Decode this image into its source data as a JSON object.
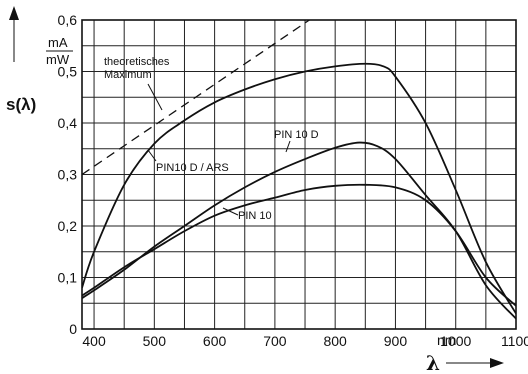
{
  "chart_data": {
    "type": "line",
    "ylabel": "s(λ)",
    "yunit_num": "mA",
    "yunit_den": "mW",
    "xlabel": "λ",
    "xunit": "nm",
    "xlim": [
      380,
      1100
    ],
    "ylim": [
      0,
      0.6
    ],
    "grid": true,
    "xticks": [
      400,
      500,
      600,
      700,
      800,
      900,
      1000,
      1100
    ],
    "xtick_labels": [
      "400",
      "500",
      "600",
      "700",
      "800",
      "900",
      "1000",
      "1100"
    ],
    "yticks": [
      0,
      0.1,
      0.2,
      0.3,
      0.4,
      0.5,
      0.6
    ],
    "ytick_labels": [
      "0",
      "0,1",
      "0,2",
      "0,3",
      "0,4",
      "0,5",
      "0,6"
    ],
    "series": [
      {
        "name": "theoretisches Maximum",
        "style": "dashed",
        "x": [
          380,
          820
        ],
        "y": [
          0.3,
          0.65
        ]
      },
      {
        "name": "PIN10 D / ARS",
        "style": "solid",
        "x": [
          380,
          400,
          450,
          500,
          550,
          600,
          650,
          700,
          750,
          800,
          850,
          880,
          900,
          950,
          1000,
          1050,
          1100
        ],
        "y": [
          0.08,
          0.15,
          0.28,
          0.36,
          0.405,
          0.44,
          0.465,
          0.485,
          0.5,
          0.51,
          0.515,
          0.51,
          0.49,
          0.4,
          0.27,
          0.13,
          0.03
        ]
      },
      {
        "name": "PIN 10 D",
        "style": "solid",
        "x": [
          380,
          400,
          450,
          500,
          550,
          600,
          650,
          700,
          750,
          800,
          840,
          870,
          900,
          950,
          1000,
          1050,
          1100
        ],
        "y": [
          0.06,
          0.075,
          0.115,
          0.16,
          0.2,
          0.24,
          0.275,
          0.305,
          0.33,
          0.352,
          0.362,
          0.355,
          0.33,
          0.26,
          0.19,
          0.085,
          0.02
        ]
      },
      {
        "name": "PIN 10",
        "style": "solid",
        "x": [
          380,
          400,
          450,
          500,
          550,
          600,
          650,
          700,
          750,
          800,
          850,
          900,
          950,
          1000,
          1050,
          1100
        ],
        "y": [
          0.065,
          0.08,
          0.12,
          0.155,
          0.19,
          0.22,
          0.24,
          0.255,
          0.27,
          0.278,
          0.28,
          0.275,
          0.25,
          0.19,
          0.1,
          0.045
        ]
      }
    ]
  }
}
